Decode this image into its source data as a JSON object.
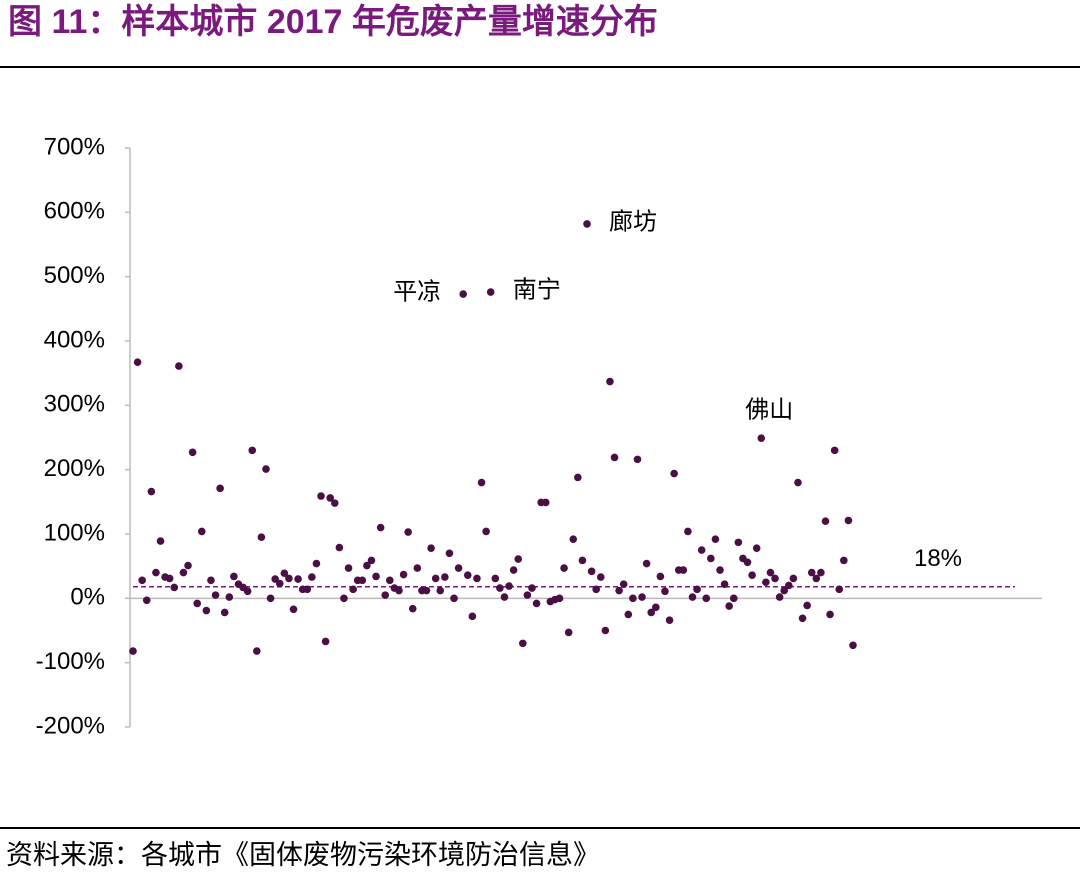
{
  "chart_data": {
    "type": "scatter",
    "title": "图 11：样本城市 2017 年危废产量增速分布",
    "source": "资料来源：各城市《固体废物污染环境防治信息》",
    "color": "#4a0f45",
    "ylim": [
      -200,
      700
    ],
    "yticks": [
      {
        "value": -200,
        "label": "-200%"
      },
      {
        "value": -100,
        "label": "-100%"
      },
      {
        "value": 0,
        "label": "0%"
      },
      {
        "value": 100,
        "label": "100%"
      },
      {
        "value": 200,
        "label": "200%"
      },
      {
        "value": 300,
        "label": "300%"
      },
      {
        "value": 400,
        "label": "400%"
      },
      {
        "value": 500,
        "label": "500%"
      },
      {
        "value": 600,
        "label": "600%"
      },
      {
        "value": 700,
        "label": "700%"
      }
    ],
    "reference_line": {
      "value": 18,
      "label": "18%",
      "color": "#7a1a7c"
    },
    "values": [
      -82,
      367,
      28,
      -3,
      166,
      40,
      89,
      33,
      31,
      17,
      361,
      40,
      51,
      227,
      -8,
      104,
      -19,
      28,
      5,
      171,
      -22,
      2,
      34,
      22,
      17,
      11,
      230,
      -82,
      95,
      201,
      0,
      30,
      23,
      39,
      31,
      -17,
      30,
      14,
      14,
      33,
      54,
      159,
      -67,
      156,
      148,
      79,
      0,
      47,
      14,
      28,
      28,
      51,
      59,
      34,
      110,
      5,
      28,
      16,
      12,
      37,
      103,
      -16,
      47,
      12,
      12,
      78,
      31,
      12,
      33,
      70,
      0,
      47,
      473,
      36,
      -28,
      31,
      180,
      104,
      476,
      31,
      16,
      2,
      19,
      44,
      61,
      -70,
      5,
      16,
      -8,
      149,
      149,
      -5,
      -2,
      0,
      47,
      -53,
      92,
      188,
      59,
      582,
      42,
      14,
      33,
      -50,
      337,
      219,
      12,
      22,
      -25,
      0,
      216,
      2,
      54,
      -22,
      -14,
      34,
      11,
      -34,
      194,
      44,
      44,
      104,
      2,
      14,
      75,
      0,
      62,
      92,
      44,
      22,
      -12,
      0,
      87,
      62,
      56,
      36,
      78,
      249,
      25,
      40,
      31,
      2,
      12,
      20,
      31,
      180,
      -31,
      -11,
      40,
      31,
      40,
      120,
      -25,
      230,
      14,
      59,
      121,
      -73
    ],
    "annotations": [
      {
        "text": "平凉",
        "point": 72,
        "side": "left"
      },
      {
        "text": "南宁",
        "point": 78,
        "side": "right"
      },
      {
        "text": "廊坊",
        "point": 99,
        "side": "right"
      },
      {
        "text": "佛山",
        "point": 137,
        "side": "top"
      }
    ]
  }
}
